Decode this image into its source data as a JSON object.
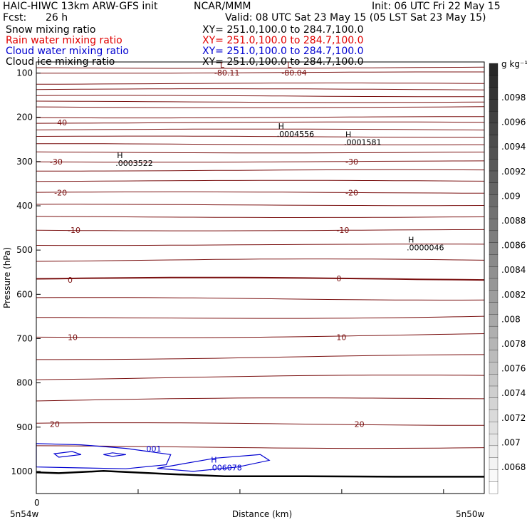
{
  "header": {
    "model": "HAIC-HIWC 13km ARW-GFS init",
    "center": "NCAR/MMM",
    "init": "Init: 06 UTC Fri 22 May 15",
    "fcst_label": "Fcst:",
    "fcst_value": "26 h",
    "valid": "Valid: 08 UTC Sat 23 May 15 (05 LST Sat 23 May 15)",
    "fields": [
      {
        "name": "Snow mixing ratio",
        "xy": "XY= 251.0,100.0 to 284.7,100.0",
        "color": "#000000"
      },
      {
        "name": "Rain water mixing ratio",
        "xy": "XY= 251.0,100.0 to 284.7,100.0",
        "color": "#e00000"
      },
      {
        "name": "Cloud water mixing ratio",
        "xy": "XY= 251.0,100.0 to 284.7,100.0",
        "color": "#0000d0"
      },
      {
        "name": "Cloud ice mixing ratio",
        "xy": "XY= 251.0,100.0 to 284.7,100.0",
        "color": "#000000"
      }
    ]
  },
  "chart_data": {
    "type": "contour",
    "xlabel": "Distance (km)",
    "ylabel": "Pressure (hPa)",
    "x_start_label": "5n54w",
    "x_end_label": "5n50w",
    "x_ticks": [
      "0"
    ],
    "ylim": [
      1050,
      75
    ],
    "y_ticks": [
      100,
      200,
      300,
      400,
      500,
      600,
      700,
      800,
      900,
      1000
    ],
    "isotherm_color": "#7a1010",
    "cloud_water_color": "#0000d0",
    "temperature_labels": [
      {
        "text": "-40",
        "x": 0.04,
        "p": 212
      },
      {
        "text": "-30",
        "x": 0.03,
        "p": 300
      },
      {
        "text": "-30",
        "x": 0.69,
        "p": 300
      },
      {
        "text": "-20",
        "x": 0.04,
        "p": 370
      },
      {
        "text": "-20",
        "x": 0.69,
        "p": 370
      },
      {
        "text": "-10",
        "x": 0.07,
        "p": 455
      },
      {
        "text": "-10",
        "x": 0.67,
        "p": 455
      },
      {
        "text": "0",
        "x": 0.07,
        "p": 567
      },
      {
        "text": "0",
        "x": 0.67,
        "p": 564
      },
      {
        "text": "10",
        "x": 0.07,
        "p": 697
      },
      {
        "text": "10",
        "x": 0.67,
        "p": 697
      },
      {
        "text": "20",
        "x": 0.03,
        "p": 893
      },
      {
        "text": "20",
        "x": 0.71,
        "p": 893
      }
    ],
    "extrema": [
      {
        "kind": "L",
        "value": "-80.11",
        "x": 0.41,
        "p": 88
      },
      {
        "kind": "L",
        "value": "-80.04",
        "x": 0.56,
        "p": 88
      },
      {
        "kind": "H",
        "value": ".0004556",
        "x": 0.54,
        "p": 226
      },
      {
        "kind": "H",
        "value": ".0001581",
        "x": 0.69,
        "p": 245
      },
      {
        "kind": "H",
        "value": ".0003522",
        "x": 0.18,
        "p": 292
      },
      {
        "kind": "H",
        "value": ".0000046",
        "x": 0.83,
        "p": 483
      },
      {
        "kind": "H",
        "value": ".006078",
        "x": 0.39,
        "p": 980
      }
    ],
    "cloud_water_label": ".001",
    "colorbar": {
      "unit": "g kg⁻¹",
      "ticks": [
        ".0098",
        ".0096",
        ".0094",
        ".0092",
        ".009",
        ".0088",
        ".0086",
        ".0084",
        ".0082",
        ".008",
        ".0078",
        ".0076",
        ".0074",
        ".0072",
        ".007",
        ".0068"
      ]
    }
  }
}
